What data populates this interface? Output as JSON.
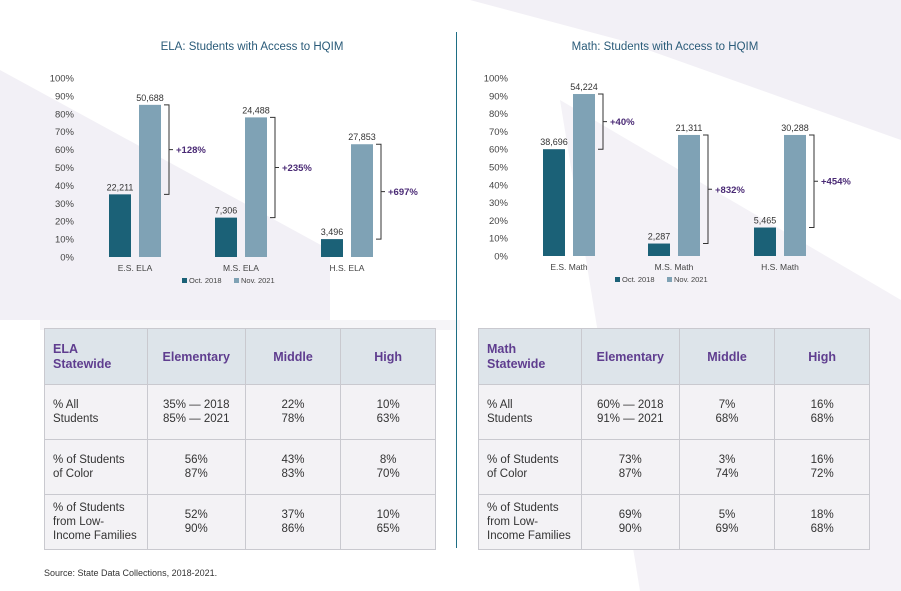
{
  "chart_data": [
    {
      "type": "bar",
      "title": "ELA: Students with Access to HQIM",
      "categories": [
        "E.S. ELA",
        "M.S. ELA",
        "H.S. ELA"
      ],
      "series": [
        {
          "name": "Oct. 2018",
          "values": [
            35,
            22,
            10
          ],
          "labels": [
            "22,211",
            "7,306",
            "3,496"
          ]
        },
        {
          "name": "Nov. 2021",
          "values": [
            85,
            78,
            63
          ],
          "labels": [
            "50,688",
            "24,488",
            "27,853"
          ]
        }
      ],
      "annotations": [
        "+128%",
        "+235%",
        "+697%"
      ],
      "yticks": [
        "0%",
        "10%",
        "20%",
        "30%",
        "40%",
        "50%",
        "60%",
        "70%",
        "80%",
        "90%",
        "100%"
      ],
      "ylim": [
        0,
        100
      ],
      "legend_position": "bottom",
      "colors": {
        "oct2018": "#1b6177",
        "nov2021": "#7fa2b5",
        "bracket": "#333333",
        "annotation": "#4a2a75"
      }
    },
    {
      "type": "bar",
      "title": "Math: Students with Access to HQIM",
      "categories": [
        "E.S. Math",
        "M.S. Math",
        "H.S. Math"
      ],
      "series": [
        {
          "name": "Oct. 2018",
          "values": [
            60,
            7,
            16
          ],
          "labels": [
            "38,696",
            "2,287",
            "5,465"
          ]
        },
        {
          "name": "Nov. 2021",
          "values": [
            91,
            68,
            68
          ],
          "labels": [
            "54,224",
            "21,311",
            "30,288"
          ]
        }
      ],
      "annotations": [
        "+40%",
        "+832%",
        "+454%"
      ],
      "yticks": [
        "0%",
        "10%",
        "20%",
        "30%",
        "40%",
        "50%",
        "60%",
        "70%",
        "80%",
        "90%",
        "100%"
      ],
      "ylim": [
        0,
        100
      ],
      "legend_position": "bottom",
      "colors": {
        "oct2018": "#1b6177",
        "nov2021": "#7fa2b5",
        "bracket": "#333333",
        "annotation": "#4a2a75"
      }
    }
  ],
  "tables": {
    "ela": {
      "header": [
        "ELA",
        "Statewide"
      ],
      "columns": [
        "Elementary",
        "Middle",
        "High"
      ],
      "rows": [
        {
          "label": [
            "% All",
            "Students"
          ],
          "cells": [
            [
              "35% — 2018",
              "85% — 2021"
            ],
            [
              "22%",
              "78%"
            ],
            [
              "10%",
              "63%"
            ]
          ]
        },
        {
          "label": [
            "% of Students",
            "of Color"
          ],
          "cells": [
            [
              "56%",
              "87%"
            ],
            [
              "43%",
              "83%"
            ],
            [
              "8%",
              "70%"
            ]
          ]
        },
        {
          "label": [
            "% of Students",
            "from Low-",
            "Income Families"
          ],
          "cells": [
            [
              "52%",
              "90%"
            ],
            [
              "37%",
              "86%"
            ],
            [
              "10%",
              "65%"
            ]
          ]
        }
      ]
    },
    "math": {
      "header": [
        "Math",
        "Statewide"
      ],
      "columns": [
        "Elementary",
        "Middle",
        "High"
      ],
      "rows": [
        {
          "label": [
            "% All",
            "Students"
          ],
          "cells": [
            [
              "60% — 2018",
              "91% — 2021"
            ],
            [
              "7%",
              "68%"
            ],
            [
              "16%",
              "68%"
            ]
          ]
        },
        {
          "label": [
            "% of Students",
            "of Color"
          ],
          "cells": [
            [
              "73%",
              "87%"
            ],
            [
              "3%",
              "74%"
            ],
            [
              "16%",
              "72%"
            ]
          ]
        },
        {
          "label": [
            "% of Students",
            "from Low-",
            "Income Families"
          ],
          "cells": [
            [
              "69%",
              "90%"
            ],
            [
              "5%",
              "69%"
            ],
            [
              "18%",
              "68%"
            ]
          ]
        }
      ]
    }
  },
  "source": "Source: State Data Collections, 2018-2021.",
  "colors": {
    "header_text": "#5f3d8f",
    "header_bg": "#dde4ea",
    "table_bg": "#f3f2f5",
    "divider": "#1e6e84"
  }
}
